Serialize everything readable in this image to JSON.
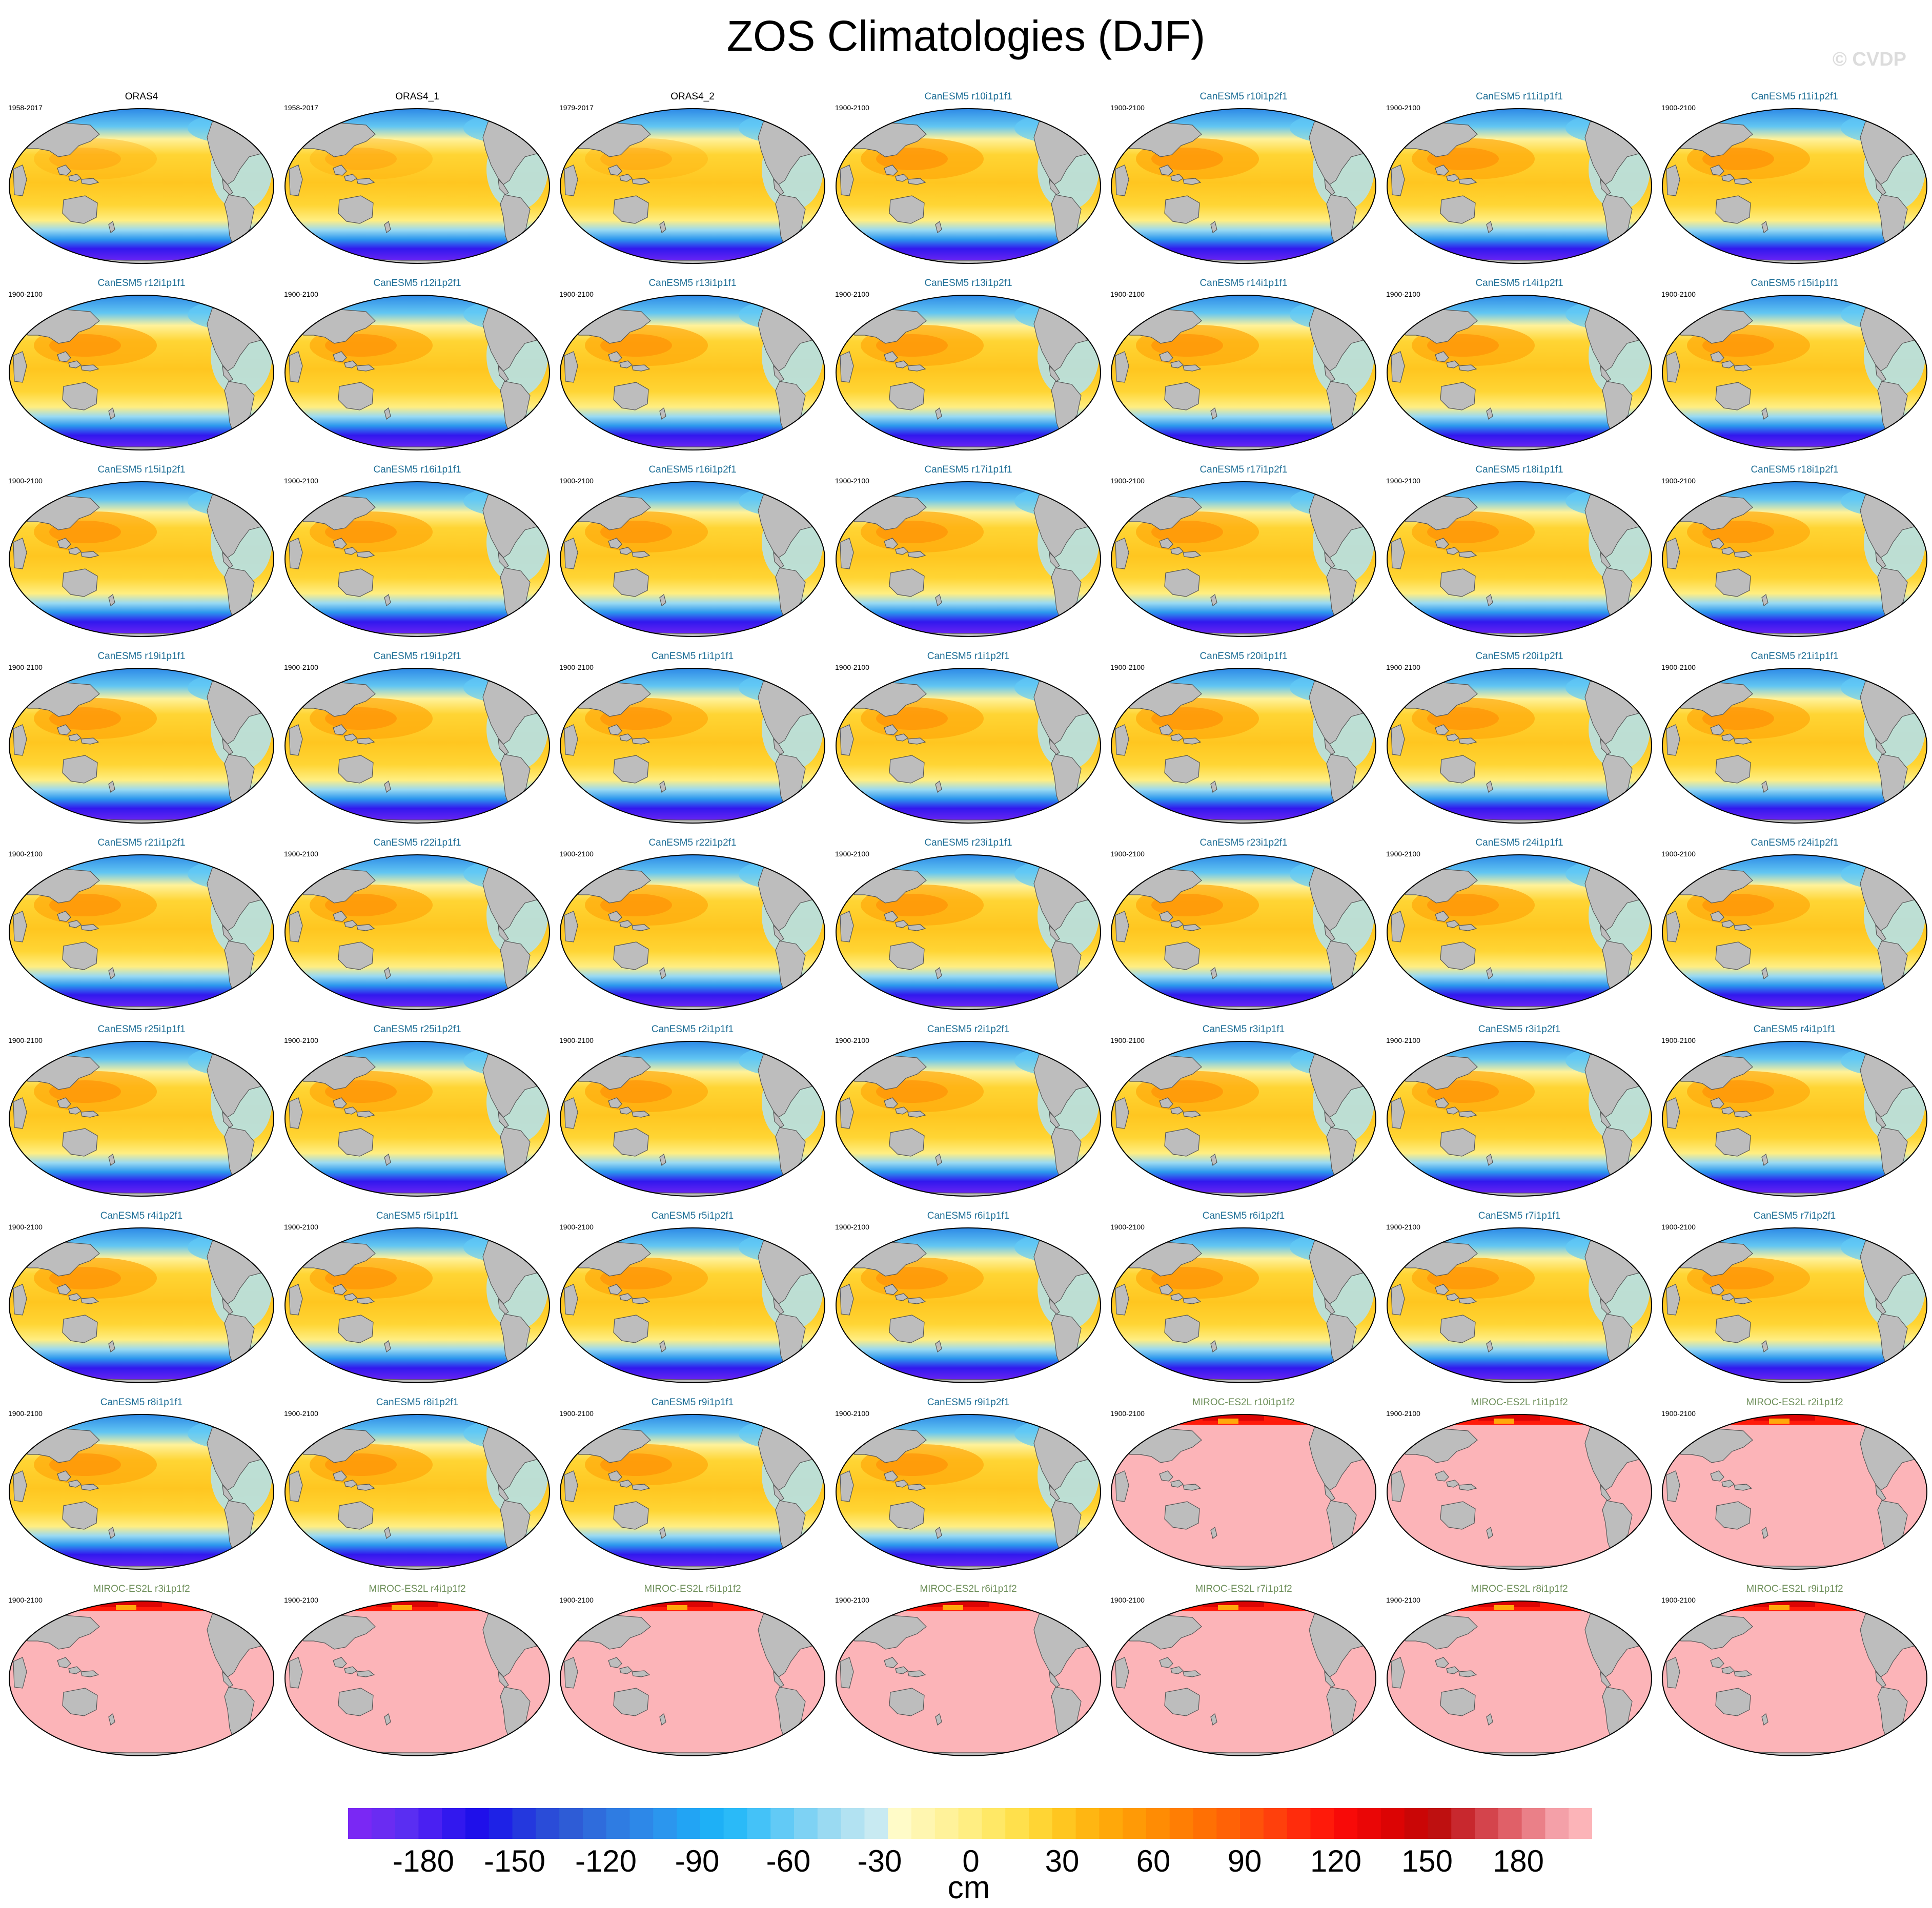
{
  "title": "ZOS Climatologies (DJF)",
  "watermark": "© CVDP",
  "panels": [
    {
      "label": "ORAS4",
      "period": "1958-2017",
      "kind": "obs"
    },
    {
      "label": "ORAS4_1",
      "period": "1958-2017",
      "kind": "obs"
    },
    {
      "label": "ORAS4_2",
      "period": "1979-2017",
      "kind": "obs"
    },
    {
      "label": "CanESM5 r10i1p1f1",
      "period": "1900-2100",
      "kind": "can"
    },
    {
      "label": "CanESM5 r10i1p2f1",
      "period": "1900-2100",
      "kind": "can"
    },
    {
      "label": "CanESM5 r11i1p1f1",
      "period": "1900-2100",
      "kind": "can"
    },
    {
      "label": "CanESM5 r11i1p2f1",
      "period": "1900-2100",
      "kind": "can"
    },
    {
      "label": "CanESM5 r12i1p1f1",
      "period": "1900-2100",
      "kind": "can"
    },
    {
      "label": "CanESM5 r12i1p2f1",
      "period": "1900-2100",
      "kind": "can"
    },
    {
      "label": "CanESM5 r13i1p1f1",
      "period": "1900-2100",
      "kind": "can"
    },
    {
      "label": "CanESM5 r13i1p2f1",
      "period": "1900-2100",
      "kind": "can"
    },
    {
      "label": "CanESM5 r14i1p1f1",
      "period": "1900-2100",
      "kind": "can"
    },
    {
      "label": "CanESM5 r14i1p2f1",
      "period": "1900-2100",
      "kind": "can"
    },
    {
      "label": "CanESM5 r15i1p1f1",
      "period": "1900-2100",
      "kind": "can"
    },
    {
      "label": "CanESM5 r15i1p2f1",
      "period": "1900-2100",
      "kind": "can"
    },
    {
      "label": "CanESM5 r16i1p1f1",
      "period": "1900-2100",
      "kind": "can"
    },
    {
      "label": "CanESM5 r16i1p2f1",
      "period": "1900-2100",
      "kind": "can"
    },
    {
      "label": "CanESM5 r17i1p1f1",
      "period": "1900-2100",
      "kind": "can"
    },
    {
      "label": "CanESM5 r17i1p2f1",
      "period": "1900-2100",
      "kind": "can"
    },
    {
      "label": "CanESM5 r18i1p1f1",
      "period": "1900-2100",
      "kind": "can"
    },
    {
      "label": "CanESM5 r18i1p2f1",
      "period": "1900-2100",
      "kind": "can"
    },
    {
      "label": "CanESM5 r19i1p1f1",
      "period": "1900-2100",
      "kind": "can"
    },
    {
      "label": "CanESM5 r19i1p2f1",
      "period": "1900-2100",
      "kind": "can"
    },
    {
      "label": "CanESM5 r1i1p1f1",
      "period": "1900-2100",
      "kind": "can"
    },
    {
      "label": "CanESM5 r1i1p2f1",
      "period": "1900-2100",
      "kind": "can"
    },
    {
      "label": "CanESM5 r20i1p1f1",
      "period": "1900-2100",
      "kind": "can"
    },
    {
      "label": "CanESM5 r20i1p2f1",
      "period": "1900-2100",
      "kind": "can"
    },
    {
      "label": "CanESM5 r21i1p1f1",
      "period": "1900-2100",
      "kind": "can"
    },
    {
      "label": "CanESM5 r21i1p2f1",
      "period": "1900-2100",
      "kind": "can"
    },
    {
      "label": "CanESM5 r22i1p1f1",
      "period": "1900-2100",
      "kind": "can"
    },
    {
      "label": "CanESM5 r22i1p2f1",
      "period": "1900-2100",
      "kind": "can"
    },
    {
      "label": "CanESM5 r23i1p1f1",
      "period": "1900-2100",
      "kind": "can"
    },
    {
      "label": "CanESM5 r23i1p2f1",
      "period": "1900-2100",
      "kind": "can"
    },
    {
      "label": "CanESM5 r24i1p1f1",
      "period": "1900-2100",
      "kind": "can"
    },
    {
      "label": "CanESM5 r24i1p2f1",
      "period": "1900-2100",
      "kind": "can"
    },
    {
      "label": "CanESM5 r25i1p1f1",
      "period": "1900-2100",
      "kind": "can"
    },
    {
      "label": "CanESM5 r25i1p2f1",
      "period": "1900-2100",
      "kind": "can"
    },
    {
      "label": "CanESM5 r2i1p1f1",
      "period": "1900-2100",
      "kind": "can"
    },
    {
      "label": "CanESM5 r2i1p2f1",
      "period": "1900-2100",
      "kind": "can"
    },
    {
      "label": "CanESM5 r3i1p1f1",
      "period": "1900-2100",
      "kind": "can"
    },
    {
      "label": "CanESM5 r3i1p2f1",
      "period": "1900-2100",
      "kind": "can"
    },
    {
      "label": "CanESM5 r4i1p1f1",
      "period": "1900-2100",
      "kind": "can"
    },
    {
      "label": "CanESM5 r4i1p2f1",
      "period": "1900-2100",
      "kind": "can"
    },
    {
      "label": "CanESM5 r5i1p1f1",
      "period": "1900-2100",
      "kind": "can"
    },
    {
      "label": "CanESM5 r5i1p2f1",
      "period": "1900-2100",
      "kind": "can"
    },
    {
      "label": "CanESM5 r6i1p1f1",
      "period": "1900-2100",
      "kind": "can"
    },
    {
      "label": "CanESM5 r6i1p2f1",
      "period": "1900-2100",
      "kind": "can"
    },
    {
      "label": "CanESM5 r7i1p1f1",
      "period": "1900-2100",
      "kind": "can"
    },
    {
      "label": "CanESM5 r7i1p2f1",
      "period": "1900-2100",
      "kind": "can"
    },
    {
      "label": "CanESM5 r8i1p1f1",
      "period": "1900-2100",
      "kind": "can"
    },
    {
      "label": "CanESM5 r8i1p2f1",
      "period": "1900-2100",
      "kind": "can"
    },
    {
      "label": "CanESM5 r9i1p1f1",
      "period": "1900-2100",
      "kind": "can"
    },
    {
      "label": "CanESM5 r9i1p2f1",
      "period": "1900-2100",
      "kind": "can"
    },
    {
      "label": "MIROC-ES2L r10i1p1f2",
      "period": "1900-2100",
      "kind": "miroc"
    },
    {
      "label": "MIROC-ES2L r1i1p1f2",
      "period": "1900-2100",
      "kind": "miroc"
    },
    {
      "label": "MIROC-ES2L r2i1p1f2",
      "period": "1900-2100",
      "kind": "miroc"
    },
    {
      "label": "MIROC-ES2L r3i1p1f2",
      "period": "1900-2100",
      "kind": "miroc"
    },
    {
      "label": "MIROC-ES2L r4i1p1f2",
      "period": "1900-2100",
      "kind": "miroc"
    },
    {
      "label": "MIROC-ES2L r5i1p1f2",
      "period": "1900-2100",
      "kind": "miroc"
    },
    {
      "label": "MIROC-ES2L r6i1p1f2",
      "period": "1900-2100",
      "kind": "miroc"
    },
    {
      "label": "MIROC-ES2L r7i1p1f2",
      "period": "1900-2100",
      "kind": "miroc"
    },
    {
      "label": "MIROC-ES2L r8i1p1f2",
      "period": "1900-2100",
      "kind": "miroc"
    },
    {
      "label": "MIROC-ES2L r9i1p1f2",
      "period": "1900-2100",
      "kind": "miroc"
    }
  ],
  "colorbar": {
    "ticks": [
      "-180",
      "-150",
      "-120",
      "-90",
      "-60",
      "-30",
      "0",
      "30",
      "60",
      "90",
      "120",
      "150",
      "180"
    ],
    "unit": "cm",
    "colors": [
      "#7a28f4",
      "#6a2cf2",
      "#5a2ef2",
      "#4a20f2",
      "#3218ee",
      "#1f10ea",
      "#1e22e6",
      "#2438de",
      "#2a4cd8",
      "#2e5cd6",
      "#2f6cdc",
      "#2f7ce2",
      "#2d88e8",
      "#2b96ee",
      "#22a4f4",
      "#1eb0f6",
      "#2abaf8",
      "#44c2f8",
      "#62caf6",
      "#7ed2f4",
      "#9adaf2",
      "#b2e2f2",
      "#c8eaf2",
      "#fffbc8",
      "#fff6b0",
      "#fff29a",
      "#ffee82",
      "#ffe866",
      "#ffe04c",
      "#ffd534",
      "#ffc620",
      "#ffb612",
      "#ffa80a",
      "#ff9a06",
      "#ff8c04",
      "#ff7e04",
      "#ff7004",
      "#ff6206",
      "#ff520a",
      "#ff400c",
      "#ff2c0c",
      "#ff1a0a",
      "#f80a08",
      "#ea0606",
      "#dc0404",
      "#ca0606",
      "#be1010",
      "#c8282e",
      "#d4444c",
      "#e06068",
      "#ea8088",
      "#f4a0a8",
      "#fcb4b8"
    ]
  }
}
